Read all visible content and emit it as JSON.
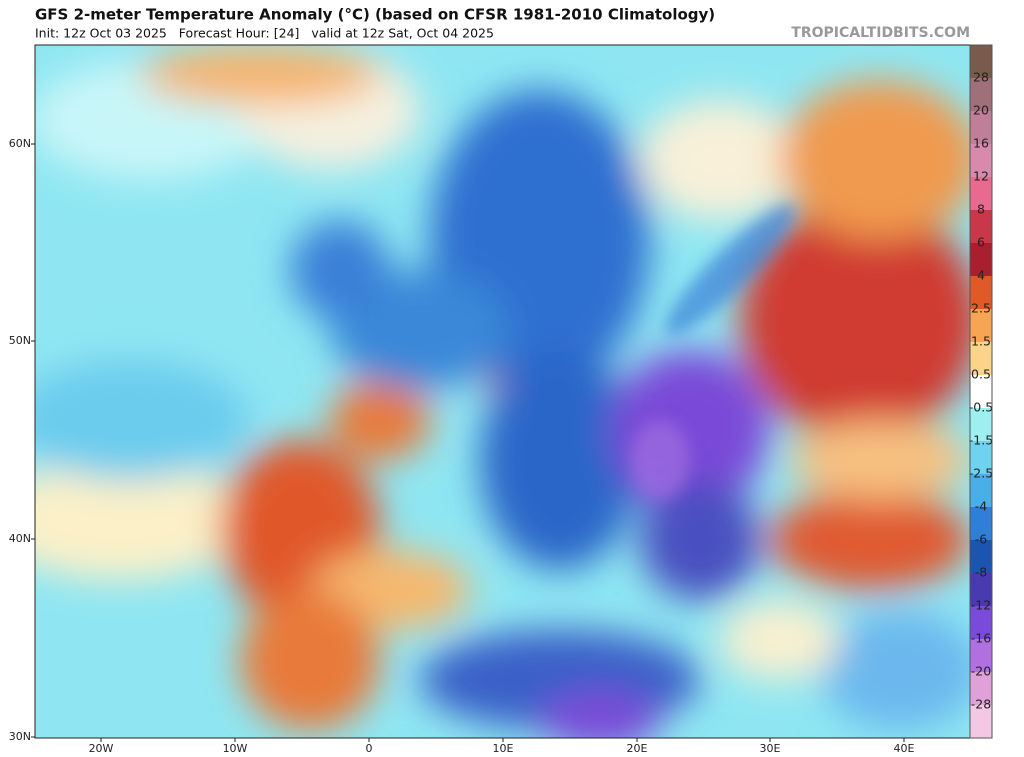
{
  "header": {
    "title": "GFS 2-meter Temperature Anomaly (°C) (based on CFSR 1981-2010 Climatology)",
    "subtitle": "Init: 12z Oct 03 2025   Forecast Hour: [24]   valid at 12z Sat, Oct 04 2025",
    "source": "TROPICALTIDBITS.COM"
  },
  "map": {
    "lat_labels": [
      "60N",
      "50N",
      "40N",
      "30N"
    ],
    "lon_labels": [
      "20W",
      "10W",
      "0",
      "10E",
      "20E",
      "30E",
      "40E"
    ]
  },
  "colorbar": {
    "levels": [
      28,
      20,
      16,
      12,
      8,
      6,
      4,
      2.5,
      1.5,
      0.5,
      -0.5,
      -1.5,
      -2.5,
      -4,
      -6,
      -8,
      -12,
      -16,
      -20,
      -28
    ],
    "colors": [
      "#7a5a4a",
      "#a0707a",
      "#c07e98",
      "#d88aae",
      "#e86a90",
      "#c8384a",
      "#a82030",
      "#e05a28",
      "#f7a455",
      "#fbd48a",
      "#ffffff",
      "#9ef0f0",
      "#6fd2ee",
      "#4aaee8",
      "#2f7fd8",
      "#1c55b0",
      "#4a3ab0",
      "#7a4ad8",
      "#b070e0",
      "#e0a0d8",
      "#f4c8e4"
    ]
  }
}
